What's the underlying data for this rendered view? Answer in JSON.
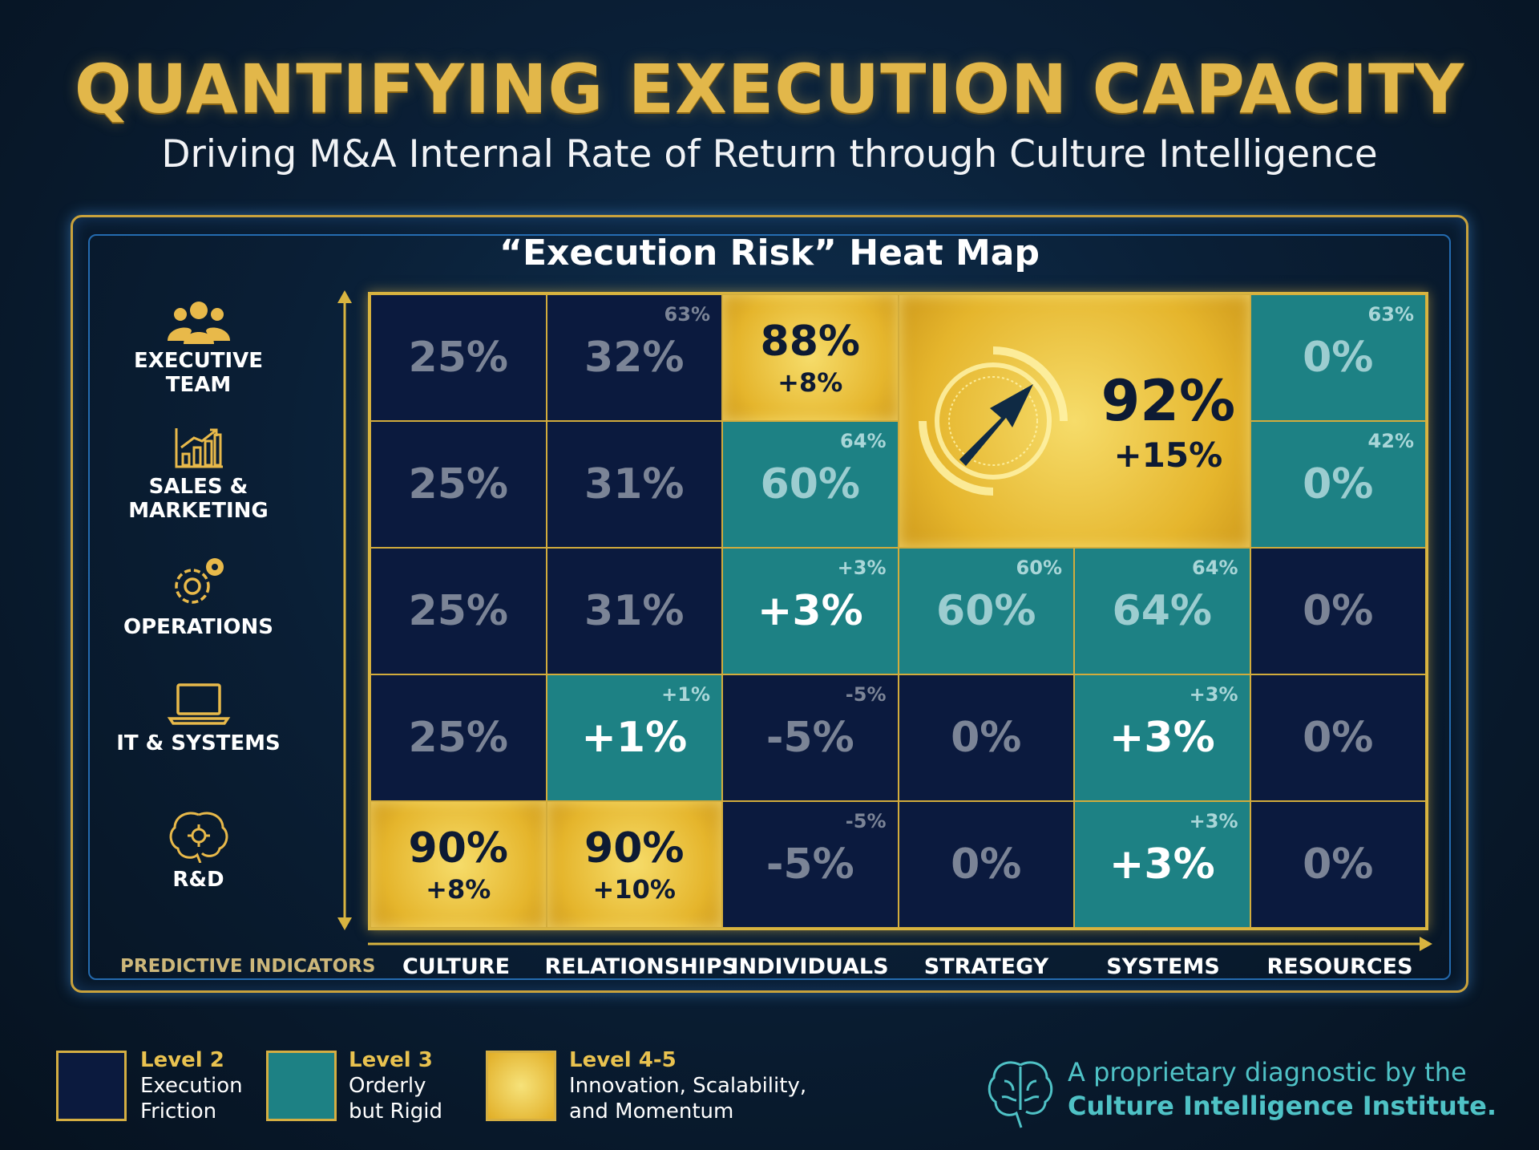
{
  "header": {
    "title": "QUANTIFYING EXECUTION CAPACITY",
    "subtitle": "Driving M&A Internal Rate of Return through Culture Intelligence"
  },
  "chart_data": {
    "type": "heatmap",
    "title": "“Execution Risk” Heat Map",
    "xlabel": "PREDICTIVE INDICATORS",
    "columns": [
      "CULTURE",
      "RELATIONSHIPS",
      "INDIVIDUALS",
      "STRATEGY",
      "SYSTEMS",
      "RESOURCES"
    ],
    "rows": [
      {
        "label": "EXECUTIVE TEAM",
        "icon": "team-icon"
      },
      {
        "label": "SALES & MARKETING",
        "icon": "bar-chart-icon"
      },
      {
        "label": "OPERATIONS",
        "icon": "gears-icon"
      },
      {
        "label": "IT & SYSTEMS",
        "icon": "laptop-icon"
      },
      {
        "label": "R&D",
        "icon": "brain-icon"
      }
    ],
    "cells": [
      {
        "row": 0,
        "col": 0,
        "level": "L2",
        "value": "25%"
      },
      {
        "row": 0,
        "col": 1,
        "level": "L2",
        "value": "32%",
        "corner": "63%"
      },
      {
        "row": 0,
        "col": 2,
        "level": "L45",
        "value": "88%",
        "delta": "+8%"
      },
      {
        "row": 0,
        "col": 3,
        "rowspan": 2,
        "colspan": 2,
        "level": "L45",
        "value": "92%",
        "delta": "+15%",
        "highlight": true
      },
      {
        "row": 0,
        "col": 5,
        "level": "L3",
        "value": "0%",
        "corner": "63%"
      },
      {
        "row": 1,
        "col": 0,
        "level": "L2",
        "value": "25%"
      },
      {
        "row": 1,
        "col": 1,
        "level": "L2",
        "value": "31%"
      },
      {
        "row": 1,
        "col": 2,
        "level": "L3",
        "value": "60%",
        "corner": "64%"
      },
      {
        "row": 1,
        "col": 5,
        "level": "L3",
        "value": "0%",
        "corner": "42%"
      },
      {
        "row": 2,
        "col": 0,
        "level": "L2",
        "value": "25%"
      },
      {
        "row": 2,
        "col": 1,
        "level": "L2",
        "value": "31%"
      },
      {
        "row": 2,
        "col": 2,
        "level": "L3",
        "value": "+3%",
        "corner": "+3%",
        "bright": true
      },
      {
        "row": 2,
        "col": 3,
        "level": "L3",
        "value": "60%",
        "corner": "60%"
      },
      {
        "row": 2,
        "col": 4,
        "level": "L3",
        "value": "64%",
        "corner": "64%"
      },
      {
        "row": 2,
        "col": 5,
        "level": "L2",
        "value": "0%"
      },
      {
        "row": 3,
        "col": 0,
        "level": "L2",
        "value": "25%"
      },
      {
        "row": 3,
        "col": 1,
        "level": "L3",
        "value": "+1%",
        "corner": "+1%",
        "bright": true
      },
      {
        "row": 3,
        "col": 2,
        "level": "L2",
        "value": "-5%",
        "corner": "-5%"
      },
      {
        "row": 3,
        "col": 3,
        "level": "L2",
        "value": "0%"
      },
      {
        "row": 3,
        "col": 4,
        "level": "L3",
        "value": "+3%",
        "corner": "+3%",
        "bright": true
      },
      {
        "row": 3,
        "col": 5,
        "level": "L2",
        "value": "0%"
      },
      {
        "row": 4,
        "col": 0,
        "level": "L45",
        "value": "90%",
        "delta": "+8%"
      },
      {
        "row": 4,
        "col": 1,
        "level": "L45",
        "value": "90%",
        "delta": "+10%"
      },
      {
        "row": 4,
        "col": 2,
        "level": "L2",
        "value": "-5%",
        "corner": "-5%"
      },
      {
        "row": 4,
        "col": 3,
        "level": "L2",
        "value": "0%"
      },
      {
        "row": 4,
        "col": 4,
        "level": "L3",
        "value": "+3%",
        "corner": "+3%",
        "bright": true
      },
      {
        "row": 4,
        "col": 5,
        "level": "L2",
        "value": "0%"
      }
    ],
    "colors": {
      "L2": "#0b1a3e",
      "L3": "#1d8184",
      "L45": "#e5b52c"
    }
  },
  "legend": [
    {
      "level": "Level 2",
      "desc1": "Execution",
      "desc2": "Friction",
      "color": "#0b1a3e"
    },
    {
      "level": "Level 3",
      "desc1": "Orderly",
      "desc2": "but Rigid",
      "color": "#1d8184"
    },
    {
      "level": "Level 4-5",
      "desc1": "Innovation, Scalability,",
      "desc2": "and Momentum",
      "color": "#e5b52c"
    }
  ],
  "credit": {
    "line1": "A proprietary diagnostic by the",
    "line2": "Culture Intelligence Institute.",
    "icon": "brain-icon"
  }
}
